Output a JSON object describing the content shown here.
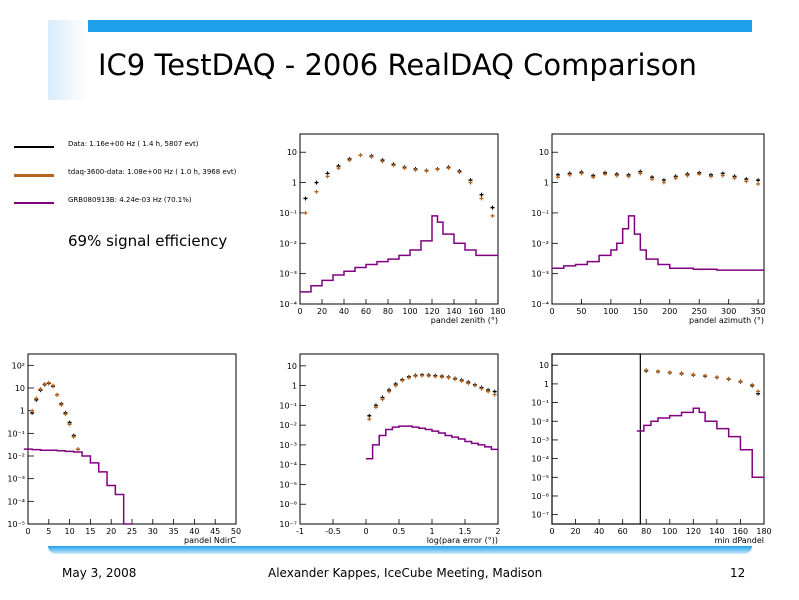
{
  "slide": {
    "title": "IC9 TestDAQ - 2006 RealDAQ Comparison",
    "footer_date": "May 3, 2008",
    "footer_author": "Alexander Kappes, IceCube Meeting, Madison",
    "footer_page": "12",
    "efficiency_note": "69% signal efficiency"
  },
  "legend": [
    {
      "text": "Data:  1.16e+00 Hz ( 1.4 h, 5807 evt)",
      "color": "#000000"
    },
    {
      "text": "tdaq-3600-data:  1.08e+00 Hz ( 1.0 h, 3968 evt)",
      "color": "#b5651d"
    },
    {
      "text": "GRB080913B:         4.24e-03 Hz (70.1%)",
      "color": "#800080"
    }
  ],
  "colors": {
    "data": "#000000",
    "tdaq": "#b5651d",
    "signal": "#800080",
    "accent": "#1ea0ec"
  },
  "chart_data": [
    {
      "id": "zenith",
      "type": "line",
      "xlabel": "pandel zenith (°)",
      "xlim": [
        0,
        180
      ],
      "xticks": [
        0,
        20,
        40,
        60,
        80,
        100,
        120,
        140,
        160,
        180
      ],
      "ylog": true,
      "ylim_exp": [
        -4,
        1.6
      ],
      "yticks": [
        {
          "e": 1,
          "t": "10"
        },
        {
          "e": 0,
          "t": "1"
        },
        {
          "e": -1,
          "t": "10⁻¹"
        },
        {
          "e": -2,
          "t": "10⁻²"
        },
        {
          "e": -3,
          "t": "10⁻³"
        },
        {
          "e": -4,
          "t": "10⁻⁴"
        }
      ],
      "series": [
        {
          "color": "#000000",
          "style": "points",
          "x": [
            5,
            15,
            25,
            35,
            45,
            55,
            65,
            75,
            85,
            95,
            105,
            115,
            125,
            135,
            145,
            155,
            165,
            175
          ],
          "y": [
            0.3,
            1.0,
            2.0,
            3.5,
            6.0,
            8.0,
            7.5,
            5.5,
            4.0,
            3.2,
            2.8,
            2.5,
            2.8,
            3.2,
            2.4,
            1.2,
            0.4,
            0.15
          ]
        },
        {
          "color": "#b5651d",
          "style": "points",
          "x": [
            5,
            15,
            25,
            35,
            45,
            55,
            65,
            75,
            85,
            95,
            105,
            115,
            125,
            135,
            145,
            155,
            165,
            175
          ],
          "y": [
            0.1,
            0.5,
            1.6,
            3.0,
            5.5,
            8.0,
            7.0,
            5.0,
            3.7,
            3.0,
            2.6,
            2.4,
            2.7,
            3.0,
            2.2,
            1.0,
            0.3,
            0.08
          ]
        },
        {
          "color": "#800080",
          "style": "step",
          "x": [
            10,
            20,
            30,
            40,
            50,
            60,
            70,
            80,
            90,
            100,
            110,
            120,
            125,
            130,
            140,
            150,
            160,
            170,
            180
          ],
          "y": [
            0.00025,
            0.0004,
            0.0006,
            0.0009,
            0.0012,
            0.0016,
            0.002,
            0.0025,
            0.003,
            0.004,
            0.006,
            0.012,
            0.08,
            0.05,
            0.02,
            0.01,
            0.006,
            0.004,
            0.004
          ]
        }
      ]
    },
    {
      "id": "azimuth",
      "type": "line",
      "xlabel": "pandel azimuth (°)",
      "xlim": [
        0,
        360
      ],
      "xticks": [
        0,
        50,
        100,
        150,
        200,
        250,
        300,
        350
      ],
      "ylog": true,
      "ylim_exp": [
        -4,
        1.6
      ],
      "yticks": [
        {
          "e": 1,
          "t": "10"
        },
        {
          "e": 0,
          "t": "1"
        },
        {
          "e": -1,
          "t": "10⁻¹"
        },
        {
          "e": -2,
          "t": "10⁻²"
        },
        {
          "e": -3,
          "t": "10⁻³"
        },
        {
          "e": -4,
          "t": "10⁻⁴"
        }
      ],
      "series": [
        {
          "color": "#000000",
          "style": "points",
          "x": [
            10,
            30,
            50,
            70,
            90,
            110,
            130,
            150,
            170,
            190,
            210,
            230,
            250,
            270,
            290,
            310,
            330,
            350
          ],
          "y": [
            1.8,
            2.0,
            2.2,
            1.7,
            2.1,
            1.9,
            1.8,
            2.3,
            1.5,
            1.2,
            1.6,
            1.9,
            2.1,
            1.8,
            2.0,
            1.6,
            1.3,
            1.2
          ]
        },
        {
          "color": "#b5651d",
          "style": "points",
          "x": [
            10,
            30,
            50,
            70,
            90,
            110,
            130,
            150,
            170,
            190,
            210,
            230,
            250,
            270,
            290,
            310,
            330,
            350
          ],
          "y": [
            1.5,
            1.8,
            2.0,
            1.5,
            1.9,
            1.7,
            1.6,
            2.0,
            1.3,
            1.0,
            1.4,
            1.7,
            1.9,
            1.6,
            1.7,
            1.4,
            1.1,
            0.9
          ]
        },
        {
          "color": "#800080",
          "style": "step",
          "x": [
            20,
            40,
            60,
            80,
            100,
            110,
            120,
            130,
            140,
            150,
            160,
            180,
            200,
            240,
            280,
            320,
            360
          ],
          "y": [
            0.0015,
            0.0018,
            0.002,
            0.0025,
            0.004,
            0.006,
            0.01,
            0.03,
            0.08,
            0.02,
            0.006,
            0.003,
            0.002,
            0.0015,
            0.0014,
            0.0013,
            0.0013
          ]
        }
      ]
    },
    {
      "id": "ndirc",
      "type": "line",
      "xlabel": "pandel NdirC",
      "xlim": [
        0,
        50
      ],
      "xticks": [
        0,
        5,
        10,
        15,
        20,
        25,
        30,
        35,
        40,
        45,
        50
      ],
      "ylog": true,
      "ylim_exp": [
        -5,
        2.5
      ],
      "yticks": [
        {
          "e": 2,
          "t": "10²"
        },
        {
          "e": 1,
          "t": "10"
        },
        {
          "e": 0,
          "t": "1"
        },
        {
          "e": -1,
          "t": "10⁻¹"
        },
        {
          "e": -2,
          "t": "10⁻²"
        },
        {
          "e": -3,
          "t": "10⁻³"
        },
        {
          "e": -4,
          "t": "10⁻⁴"
        },
        {
          "e": -5,
          "t": "10⁻⁵"
        }
      ],
      "series": [
        {
          "color": "#000000",
          "style": "points",
          "x": [
            1,
            2,
            3,
            4,
            5,
            6,
            7,
            8,
            9,
            10,
            11,
            12
          ],
          "y": [
            0.8,
            3,
            8,
            14,
            16,
            12,
            5,
            2,
            0.8,
            0.3,
            0.08,
            0.02
          ]
        },
        {
          "color": "#b5651d",
          "style": "points",
          "x": [
            1,
            2,
            3,
            4,
            5,
            6,
            7,
            8,
            9,
            10,
            11,
            12
          ],
          "y": [
            1.0,
            3.5,
            9,
            15,
            17,
            13,
            5,
            1.8,
            0.7,
            0.25,
            0.07,
            0.02
          ]
        },
        {
          "color": "#800080",
          "style": "step",
          "x": [
            1,
            3,
            5,
            7,
            9,
            11,
            13,
            15,
            17,
            19,
            21,
            23,
            25
          ],
          "y": [
            0.02,
            0.019,
            0.018,
            0.018,
            0.017,
            0.016,
            0.015,
            0.01,
            0.005,
            0.002,
            0.0005,
            0.0002,
            1e-05
          ]
        }
      ]
    },
    {
      "id": "logparaerror",
      "type": "line",
      "xlabel": "log(para error (°))",
      "xlim": [
        -1,
        2
      ],
      "xticks": [
        -1,
        -0.5,
        0,
        0.5,
        1,
        1.5,
        2
      ],
      "ylog": true,
      "ylim_exp": [
        -7,
        1.6
      ],
      "yticks": [
        {
          "e": 1,
          "t": "10"
        },
        {
          "e": 0,
          "t": "1"
        },
        {
          "e": -1,
          "t": "10⁻¹"
        },
        {
          "e": -2,
          "t": "10⁻²"
        },
        {
          "e": -3,
          "t": "10⁻³"
        },
        {
          "e": -4,
          "t": "10⁻⁴"
        },
        {
          "e": -5,
          "t": "10⁻⁵"
        },
        {
          "e": -6,
          "t": "10⁻⁶"
        },
        {
          "e": -7,
          "t": "10⁻⁷"
        }
      ],
      "series": [
        {
          "color": "#000000",
          "style": "points",
          "x": [
            0.05,
            0.15,
            0.25,
            0.35,
            0.45,
            0.55,
            0.65,
            0.75,
            0.85,
            0.95,
            1.05,
            1.15,
            1.25,
            1.35,
            1.45,
            1.55,
            1.65,
            1.75,
            1.85,
            1.95
          ],
          "y": [
            0.03,
            0.1,
            0.25,
            0.6,
            1.2,
            2.0,
            2.8,
            3.3,
            3.5,
            3.4,
            3.2,
            3.0,
            2.7,
            2.3,
            1.9,
            1.5,
            1.1,
            0.8,
            0.6,
            0.5
          ]
        },
        {
          "color": "#b5651d",
          "style": "points",
          "x": [
            0.05,
            0.15,
            0.25,
            0.35,
            0.45,
            0.55,
            0.65,
            0.75,
            0.85,
            0.95,
            1.05,
            1.15,
            1.25,
            1.35,
            1.45,
            1.55,
            1.65,
            1.75,
            1.85,
            1.95
          ],
          "y": [
            0.02,
            0.08,
            0.2,
            0.5,
            1.0,
            1.8,
            2.5,
            3.0,
            3.2,
            3.1,
            2.9,
            2.7,
            2.5,
            2.1,
            1.7,
            1.3,
            1.0,
            0.7,
            0.5,
            0.35
          ]
        },
        {
          "color": "#800080",
          "style": "step",
          "x": [
            0.1,
            0.2,
            0.3,
            0.4,
            0.5,
            0.6,
            0.7,
            0.8,
            0.9,
            1.0,
            1.1,
            1.2,
            1.3,
            1.4,
            1.5,
            1.6,
            1.7,
            1.8,
            1.9,
            2.0
          ],
          "y": [
            0.0002,
            0.001,
            0.003,
            0.006,
            0.008,
            0.009,
            0.009,
            0.008,
            0.007,
            0.006,
            0.005,
            0.004,
            0.003,
            0.0025,
            0.002,
            0.0015,
            0.0012,
            0.001,
            0.0008,
            0.0006
          ]
        }
      ]
    },
    {
      "id": "mindpandel",
      "type": "line",
      "xlabel": "min dPandel",
      "xlim": [
        0,
        180
      ],
      "xticks": [
        0,
        20,
        40,
        60,
        80,
        100,
        120,
        140,
        160,
        180
      ],
      "ylog": true,
      "ylim_exp": [
        -7.5,
        1.6
      ],
      "yticks": [
        {
          "e": 1,
          "t": "10"
        },
        {
          "e": 0,
          "t": "1"
        },
        {
          "e": -1,
          "t": "10⁻¹"
        },
        {
          "e": -2,
          "t": "10⁻²"
        },
        {
          "e": -3,
          "t": "10⁻³"
        },
        {
          "e": -4,
          "t": "10⁻⁴"
        },
        {
          "e": -5,
          "t": "10⁻⁵"
        },
        {
          "e": -6,
          "t": "10⁻⁶"
        },
        {
          "e": -7,
          "t": "10⁻⁷"
        }
      ],
      "cut_box": [
        0,
        75
      ],
      "series": [
        {
          "color": "#000000",
          "style": "points",
          "x": [
            80,
            90,
            100,
            110,
            120,
            130,
            140,
            150,
            160,
            170,
            175
          ],
          "y": [
            5,
            4.5,
            4,
            3.5,
            3,
            2.6,
            2.2,
            1.8,
            1.3,
            0.8,
            0.3
          ]
        },
        {
          "color": "#b5651d",
          "style": "points",
          "x": [
            80,
            90,
            100,
            110,
            120,
            130,
            140,
            150,
            160,
            170,
            175
          ],
          "y": [
            5.5,
            4.8,
            4.2,
            3.8,
            3.2,
            2.8,
            2.3,
            1.9,
            1.4,
            0.9,
            0.4
          ]
        },
        {
          "color": "#800080",
          "style": "step",
          "x": [
            78,
            84,
            90,
            100,
            110,
            120,
            125,
            130,
            140,
            150,
            160,
            170,
            175,
            180
          ],
          "y": [
            0.003,
            0.006,
            0.01,
            0.015,
            0.02,
            0.03,
            0.05,
            0.03,
            0.01,
            0.004,
            0.0015,
            0.0003,
            1e-05,
            1e-05
          ]
        }
      ]
    }
  ]
}
